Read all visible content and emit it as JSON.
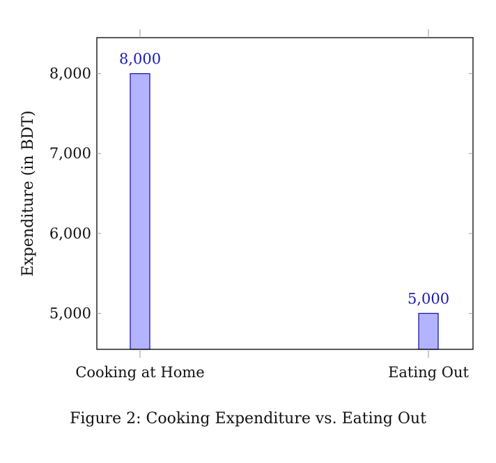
{
  "caption": "Figure 2: Cooking Expenditure vs. Eating Out",
  "colors": {
    "bar_fill": "#b3b3ff",
    "bar_stroke": "#1a1aa6",
    "data_label": "#1a1ab3",
    "axis": "#000000",
    "tick": "#9a9a9a"
  },
  "chart_data": {
    "type": "bar",
    "categories": [
      "Cooking at Home",
      "Eating Out"
    ],
    "values": [
      8000,
      5000
    ],
    "data_labels": [
      "8,000",
      "5,000"
    ],
    "title": "",
    "xlabel": "",
    "ylabel": "Expenditure (in BDT)",
    "ylim": [
      4550,
      8450
    ],
    "yticks": [
      5000,
      6000,
      7000,
      8000
    ],
    "ytick_labels": [
      "5,000",
      "6,000",
      "7,000",
      "8,000"
    ],
    "grid": false,
    "legend": "none"
  }
}
